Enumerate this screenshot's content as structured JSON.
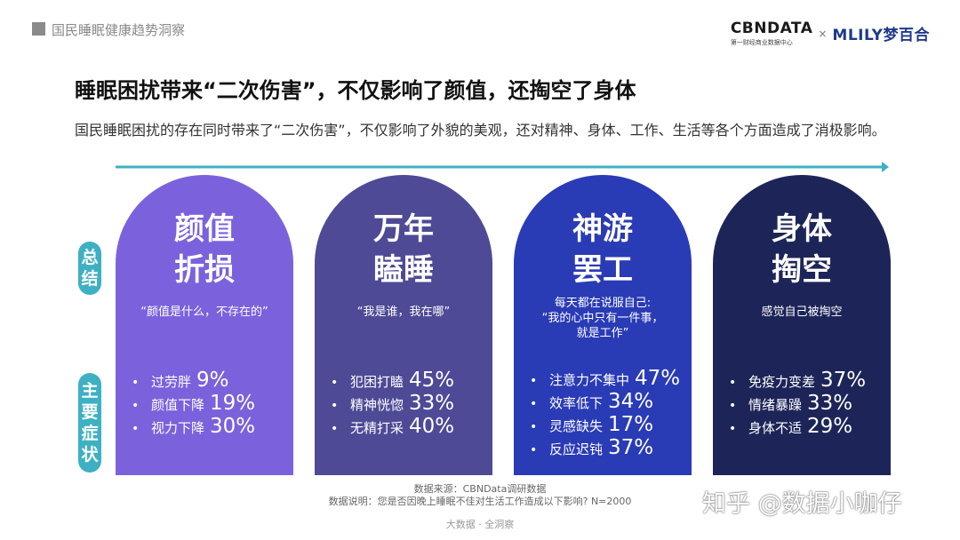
{
  "header": {
    "section_title": "国民睡眠健康趋势洞察",
    "logo_left_main": "CBNDATA",
    "logo_left_sub": "第一财经商业数据中心",
    "logo_separator": "×",
    "logo_right": "MLILY梦百合"
  },
  "title": "睡眠困扰带来“二次伤害”，不仅影响了颜值，还掏空了身体",
  "description": "国民睡眠困扰的存在同时带来了“二次伤害”，不仅影响了外貌的美观，还对精神、身体、工作、生活等各个方面造成了消极影响。",
  "row_labels": {
    "summary": [
      "总",
      "结"
    ],
    "symptoms": [
      "主",
      "要",
      "症",
      "状"
    ]
  },
  "colors": {
    "teal": "#3eb0c3",
    "card1": "#7b62dc",
    "card2": "#4e4a96",
    "card3": "#2a3bb6",
    "card4": "#1d2558"
  },
  "cards": [
    {
      "title_lines": [
        "颜值",
        "折损"
      ],
      "quote_lines": [
        "“颜值是什么，不存在的”"
      ],
      "bullet": "•",
      "symptoms": [
        {
          "name": "过劳胖",
          "pct": "9%"
        },
        {
          "name": "颜值下降",
          "pct": "19%"
        },
        {
          "name": "视力下降",
          "pct": "30%"
        }
      ]
    },
    {
      "title_lines": [
        "万年",
        "瞌睡"
      ],
      "quote_lines": [
        "“我是谁，我在哪”"
      ],
      "bullet": "•",
      "symptoms": [
        {
          "name": "犯困打瞌",
          "pct": "45%"
        },
        {
          "name": "精神恍惚",
          "pct": "33%"
        },
        {
          "name": "无精打采",
          "pct": "40%"
        }
      ]
    },
    {
      "title_lines": [
        "神游",
        "罢工"
      ],
      "quote_lines": [
        "每天都在说服自己:",
        "“我的心中只有一件事，",
        "就是工作”"
      ],
      "bullet": "•",
      "symptoms": [
        {
          "name": "注意力不集中",
          "pct": "47%"
        },
        {
          "name": "效率低下",
          "pct": "34%"
        },
        {
          "name": "灵感缺失",
          "pct": "17%"
        },
        {
          "name": "反应迟钝",
          "pct": "37%"
        }
      ]
    },
    {
      "title_lines": [
        "身体",
        "掏空"
      ],
      "quote_lines": [
        "感觉自己被掏空"
      ],
      "bullet": "•",
      "symptoms": [
        {
          "name": "免疫力变差",
          "pct": "37%"
        },
        {
          "name": "情绪暴躁",
          "pct": "33%"
        },
        {
          "name": "身体不适",
          "pct": "29%"
        }
      ]
    }
  ],
  "footer": {
    "source": "数据来源：CBNData调研数据",
    "note": "数据说明：您是否因晚上睡眠不佳对生活工作造成以下影响? N=2000",
    "brand": "大数据 · 全洞察"
  },
  "watermark": "知乎 @数据小咖仔"
}
